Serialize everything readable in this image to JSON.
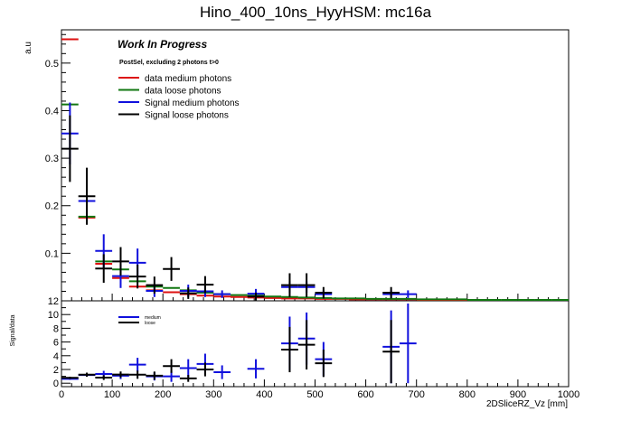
{
  "page_title": "Hino_400_10ns_HyyHSM: mc16a",
  "annotations": {
    "work_in_progress": "Work In Progress",
    "selection": "PostSel, excluding 2 photons t>0"
  },
  "colors": {
    "data_medium": "#dd1111",
    "data_loose": "#117711",
    "signal_medium": "#1010dd",
    "signal_loose": "#000000"
  },
  "chart_data": [
    {
      "type": "scatter",
      "panel": "top",
      "xlabel": "",
      "ylabel": "a.u",
      "xlim": [
        0,
        1000
      ],
      "ylim": [
        0,
        0.57
      ],
      "yticks": [
        "0.1",
        "0.2",
        "0.3",
        "0.4",
        "0.5"
      ],
      "grid": false,
      "legend": {
        "placement": "top-left",
        "entries": [
          "data medium photons",
          "data loose photons",
          "Signal medium photons",
          "Signal loose photons"
        ]
      },
      "series": [
        {
          "name": "data medium photons",
          "color_key": "data_medium",
          "points": [
            {
              "x": 16.7,
              "y": 0.55,
              "xerr": 16.7,
              "yerr": 0
            },
            {
              "x": 50,
              "y": 0.175,
              "xerr": 16.7,
              "yerr": 0
            },
            {
              "x": 83.3,
              "y": 0.078,
              "xerr": 16.7,
              "yerr": 0
            },
            {
              "x": 116.7,
              "y": 0.048,
              "xerr": 16.7,
              "yerr": 0
            },
            {
              "x": 150,
              "y": 0.03,
              "xerr": 16.7,
              "yerr": 0
            },
            {
              "x": 183.3,
              "y": 0.022,
              "xerr": 16.7,
              "yerr": 0
            },
            {
              "x": 216.7,
              "y": 0.018,
              "xerr": 16.7,
              "yerr": 0
            },
            {
              "x": 250,
              "y": 0.014,
              "xerr": 16.7,
              "yerr": 0
            },
            {
              "x": 283.3,
              "y": 0.011,
              "xerr": 16.7,
              "yerr": 0
            },
            {
              "x": 316.7,
              "y": 0.009,
              "xerr": 16.7,
              "yerr": 0
            },
            {
              "x": 350,
              "y": 0.008,
              "xerr": 16.7,
              "yerr": 0
            },
            {
              "x": 383.3,
              "y": 0.007,
              "xerr": 16.7,
              "yerr": 0
            },
            {
              "x": 416.7,
              "y": 0.006,
              "xerr": 16.7,
              "yerr": 0
            },
            {
              "x": 450,
              "y": 0.005,
              "xerr": 16.7,
              "yerr": 0
            },
            {
              "x": 483.3,
              "y": 0.005,
              "xerr": 16.7,
              "yerr": 0
            },
            {
              "x": 516.7,
              "y": 0.004,
              "xerr": 16.7,
              "yerr": 0
            },
            {
              "x": 550,
              "y": 0.004,
              "xerr": 16.7,
              "yerr": 0
            },
            {
              "x": 583.3,
              "y": 0.003,
              "xerr": 16.7,
              "yerr": 0
            },
            {
              "x": 616.7,
              "y": 0.003,
              "xerr": 16.7,
              "yerr": 0
            },
            {
              "x": 650,
              "y": 0.003,
              "xerr": 16.7,
              "yerr": 0
            },
            {
              "x": 683.3,
              "y": 0.003,
              "xerr": 16.7,
              "yerr": 0
            },
            {
              "x": 716.7,
              "y": 0.002,
              "xerr": 16.7,
              "yerr": 0
            },
            {
              "x": 750,
              "y": 0.002,
              "xerr": 16.7,
              "yerr": 0
            },
            {
              "x": 783.3,
              "y": 0.002,
              "xerr": 16.7,
              "yerr": 0
            }
          ]
        },
        {
          "name": "data loose photons",
          "color_key": "data_loose",
          "points": [
            {
              "x": 16.7,
              "y": 0.413,
              "xerr": 16.7,
              "yerr": 0
            },
            {
              "x": 50,
              "y": 0.177,
              "xerr": 16.7,
              "yerr": 0
            },
            {
              "x": 83.3,
              "y": 0.083,
              "xerr": 16.7,
              "yerr": 0
            },
            {
              "x": 116.7,
              "y": 0.066,
              "xerr": 16.7,
              "yerr": 0
            },
            {
              "x": 150,
              "y": 0.041,
              "xerr": 16.7,
              "yerr": 0
            },
            {
              "x": 183.3,
              "y": 0.03,
              "xerr": 16.7,
              "yerr": 0
            },
            {
              "x": 216.7,
              "y": 0.027,
              "xerr": 16.7,
              "yerr": 0
            },
            {
              "x": 250,
              "y": 0.022,
              "xerr": 16.7,
              "yerr": 0
            },
            {
              "x": 283.3,
              "y": 0.017,
              "xerr": 16.7,
              "yerr": 0
            },
            {
              "x": 316.7,
              "y": 0.014,
              "xerr": 16.7,
              "yerr": 0
            },
            {
              "x": 350,
              "y": 0.012,
              "xerr": 16.7,
              "yerr": 0
            },
            {
              "x": 383.3,
              "y": 0.011,
              "xerr": 16.7,
              "yerr": 0
            },
            {
              "x": 416.7,
              "y": 0.009,
              "xerr": 16.7,
              "yerr": 0
            },
            {
              "x": 450,
              "y": 0.008,
              "xerr": 16.7,
              "yerr": 0
            },
            {
              "x": 483.3,
              "y": 0.007,
              "xerr": 16.7,
              "yerr": 0
            },
            {
              "x": 516.7,
              "y": 0.006,
              "xerr": 16.7,
              "yerr": 0
            },
            {
              "x": 550,
              "y": 0.005,
              "xerr": 16.7,
              "yerr": 0
            },
            {
              "x": 583.3,
              "y": 0.005,
              "xerr": 16.7,
              "yerr": 0
            },
            {
              "x": 616.7,
              "y": 0.004,
              "xerr": 16.7,
              "yerr": 0
            },
            {
              "x": 650,
              "y": 0.004,
              "xerr": 16.7,
              "yerr": 0
            },
            {
              "x": 683.3,
              "y": 0.004,
              "xerr": 16.7,
              "yerr": 0
            },
            {
              "x": 716.7,
              "y": 0.003,
              "xerr": 16.7,
              "yerr": 0
            },
            {
              "x": 750,
              "y": 0.003,
              "xerr": 16.7,
              "yerr": 0
            },
            {
              "x": 783.3,
              "y": 0.003,
              "xerr": 16.7,
              "yerr": 0
            },
            {
              "x": 816.7,
              "y": 0.002,
              "xerr": 16.7,
              "yerr": 0
            },
            {
              "x": 850,
              "y": 0.002,
              "xerr": 16.7,
              "yerr": 0
            },
            {
              "x": 883.3,
              "y": 0.002,
              "xerr": 16.7,
              "yerr": 0
            },
            {
              "x": 916.7,
              "y": 0.002,
              "xerr": 16.7,
              "yerr": 0
            },
            {
              "x": 950,
              "y": 0.002,
              "xerr": 16.7,
              "yerr": 0
            },
            {
              "x": 983.3,
              "y": 0.002,
              "xerr": 16.7,
              "yerr": 0
            }
          ]
        },
        {
          "name": "Signal medium photons",
          "color_key": "signal_medium",
          "points": [
            {
              "x": 16.7,
              "y": 0.352,
              "xerr": 16.7,
              "yerr": 0.065
            },
            {
              "x": 50,
              "y": 0.21,
              "xerr": 16.7,
              "yerr": 0
            },
            {
              "x": 83.3,
              "y": 0.105,
              "xerr": 16.7,
              "yerr": 0.035
            },
            {
              "x": 116.7,
              "y": 0.052,
              "xerr": 16.7,
              "yerr": 0.025
            },
            {
              "x": 150,
              "y": 0.08,
              "xerr": 16.7,
              "yerr": 0.03
            },
            {
              "x": 183.3,
              "y": 0.021,
              "xerr": 16.7,
              "yerr": 0.013
            },
            {
              "x": 250,
              "y": 0.021,
              "xerr": 16.7,
              "yerr": 0.013
            },
            {
              "x": 283.3,
              "y": 0.02,
              "xerr": 16.7,
              "yerr": 0.012
            },
            {
              "x": 316.7,
              "y": 0.014,
              "xerr": 16.7,
              "yerr": 0.008
            },
            {
              "x": 383.3,
              "y": 0.015,
              "xerr": 16.7,
              "yerr": 0.01
            },
            {
              "x": 450,
              "y": 0.029,
              "xerr": 16.7,
              "yerr": 0.012
            },
            {
              "x": 483.3,
              "y": 0.029,
              "xerr": 16.7,
              "yerr": 0.012
            },
            {
              "x": 516.7,
              "y": 0.014,
              "xerr": 16.7,
              "yerr": 0.008
            },
            {
              "x": 650,
              "y": 0.014,
              "xerr": 16.7,
              "yerr": 0.008
            },
            {
              "x": 683.3,
              "y": 0.014,
              "xerr": 16.7,
              "yerr": 0.008
            }
          ]
        },
        {
          "name": "Signal loose photons",
          "color_key": "signal_loose",
          "points": [
            {
              "x": 16.7,
              "y": 0.32,
              "xerr": 16.7,
              "yerr": 0.07
            },
            {
              "x": 50,
              "y": 0.22,
              "xerr": 16.7,
              "yerr": 0.06
            },
            {
              "x": 83.3,
              "y": 0.068,
              "xerr": 16.7,
              "yerr": 0.03
            },
            {
              "x": 116.7,
              "y": 0.083,
              "xerr": 16.7,
              "yerr": 0.03
            },
            {
              "x": 150,
              "y": 0.051,
              "xerr": 16.7,
              "yerr": 0.025
            },
            {
              "x": 183.3,
              "y": 0.033,
              "xerr": 16.7,
              "yerr": 0.018
            },
            {
              "x": 216.7,
              "y": 0.067,
              "xerr": 16.7,
              "yerr": 0.025
            },
            {
              "x": 250,
              "y": 0.016,
              "xerr": 16.7,
              "yerr": 0.012
            },
            {
              "x": 283.3,
              "y": 0.034,
              "xerr": 16.7,
              "yerr": 0.018
            },
            {
              "x": 383.3,
              "y": 0.009,
              "xerr": 16.7,
              "yerr": 0.008
            },
            {
              "x": 450,
              "y": 0.033,
              "xerr": 16.7,
              "yerr": 0.025
            },
            {
              "x": 483.3,
              "y": 0.033,
              "xerr": 16.7,
              "yerr": 0.025
            },
            {
              "x": 516.7,
              "y": 0.017,
              "xerr": 16.7,
              "yerr": 0.012
            },
            {
              "x": 650,
              "y": 0.017,
              "xerr": 16.7,
              "yerr": 0.012
            }
          ]
        }
      ]
    },
    {
      "type": "scatter",
      "panel": "bottom",
      "xlabel": "2DSliceRZ_Vz [mm]",
      "ylabel": "Signal/data",
      "xlim": [
        0,
        1000
      ],
      "ylim": [
        -0.5,
        12
      ],
      "xticks": [
        "0",
        "100",
        "200",
        "300",
        "400",
        "500",
        "600",
        "700",
        "800",
        "900",
        "1000"
      ],
      "yticks": [
        "0",
        "2",
        "4",
        "6",
        "8",
        "10",
        "12"
      ],
      "grid": false,
      "legend": {
        "placement": "top-left",
        "entries": [
          "medium",
          "loose"
        ]
      },
      "series": [
        {
          "name": "medium",
          "color_key": "signal_medium",
          "points": [
            {
              "x": 16.7,
              "y": 0.64,
              "xerr": 16.7,
              "yerr": 0.15
            },
            {
              "x": 50,
              "y": 1.2,
              "xerr": 16.7,
              "yerr": 0.2
            },
            {
              "x": 83.3,
              "y": 1.35,
              "xerr": 16.7,
              "yerr": 0.45
            },
            {
              "x": 116.7,
              "y": 1.1,
              "xerr": 16.7,
              "yerr": 0.5
            },
            {
              "x": 150,
              "y": 2.7,
              "xerr": 16.7,
              "yerr": 1.0
            },
            {
              "x": 183.3,
              "y": 1.0,
              "xerr": 16.7,
              "yerr": 0.6
            },
            {
              "x": 216.7,
              "y": 1.0,
              "xerr": 16.7,
              "yerr": 0.8
            },
            {
              "x": 250,
              "y": 2.2,
              "xerr": 16.7,
              "yerr": 1.3
            },
            {
              "x": 283.3,
              "y": 2.8,
              "xerr": 16.7,
              "yerr": 1.5
            },
            {
              "x": 316.7,
              "y": 1.6,
              "xerr": 16.7,
              "yerr": 1.0
            },
            {
              "x": 383.3,
              "y": 2.1,
              "xerr": 16.7,
              "yerr": 1.4
            },
            {
              "x": 450,
              "y": 5.8,
              "xerr": 16.7,
              "yerr": 3.9
            },
            {
              "x": 483.3,
              "y": 6.5,
              "xerr": 16.7,
              "yerr": 3.8
            },
            {
              "x": 516.7,
              "y": 3.5,
              "xerr": 16.7,
              "yerr": 2.5
            },
            {
              "x": 650,
              "y": 5.3,
              "xerr": 16.7,
              "yerr": 5.3
            },
            {
              "x": 683.3,
              "y": 5.8,
              "xerr": 16.7,
              "yerr": 5.8
            }
          ]
        },
        {
          "name": "loose",
          "color_key": "signal_loose",
          "points": [
            {
              "x": 16.7,
              "y": 0.78,
              "xerr": 16.7,
              "yerr": 0.17
            },
            {
              "x": 50,
              "y": 1.24,
              "xerr": 16.7,
              "yerr": 0.3
            },
            {
              "x": 83.3,
              "y": 0.82,
              "xerr": 16.7,
              "yerr": 0.35
            },
            {
              "x": 116.7,
              "y": 1.26,
              "xerr": 16.7,
              "yerr": 0.45
            },
            {
              "x": 150,
              "y": 1.24,
              "xerr": 16.7,
              "yerr": 0.6
            },
            {
              "x": 183.3,
              "y": 1.1,
              "xerr": 16.7,
              "yerr": 0.6
            },
            {
              "x": 216.7,
              "y": 2.5,
              "xerr": 16.7,
              "yerr": 1.0
            },
            {
              "x": 250,
              "y": 0.7,
              "xerr": 16.7,
              "yerr": 0.5
            },
            {
              "x": 283.3,
              "y": 2.0,
              "xerr": 16.7,
              "yerr": 1.0
            },
            {
              "x": 450,
              "y": 4.9,
              "xerr": 16.7,
              "yerr": 3.3
            },
            {
              "x": 483.3,
              "y": 5.6,
              "xerr": 16.7,
              "yerr": 3.6
            },
            {
              "x": 516.7,
              "y": 2.9,
              "xerr": 16.7,
              "yerr": 2.0
            },
            {
              "x": 650,
              "y": 4.6,
              "xerr": 16.7,
              "yerr": 4.6
            }
          ]
        }
      ]
    }
  ]
}
